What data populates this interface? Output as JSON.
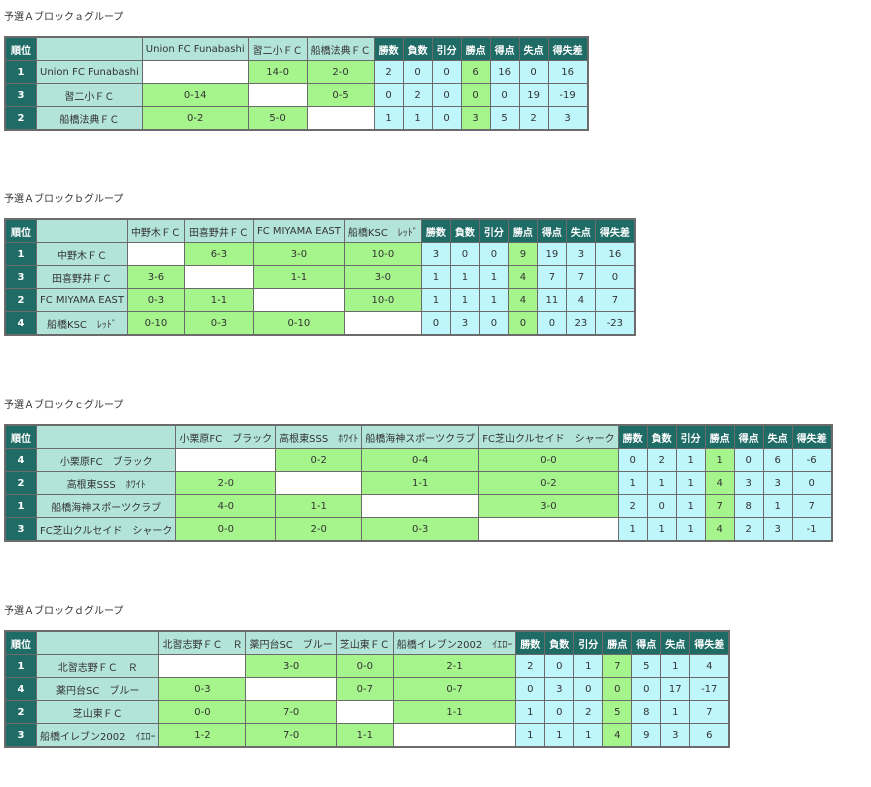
{
  "stat_headers": [
    "勝数",
    "負数",
    "引分",
    "勝点",
    "得点",
    "失点",
    "得失差"
  ],
  "rank_header": "順位",
  "groups": [
    {
      "title": "予選Ａブロックａグループ",
      "teams": [
        "Union FC Funabashi",
        "習二小ＦＣ",
        "船橋法典ＦＣ"
      ],
      "rows": [
        {
          "rank": "1",
          "team": "Union FC Funabashi",
          "results": [
            "",
            "14-0",
            "2-0"
          ],
          "stats": [
            "2",
            "0",
            "0",
            "6",
            "16",
            "0",
            "16"
          ]
        },
        {
          "rank": "3",
          "team": "習二小ＦＣ",
          "results": [
            "0-14",
            "",
            "0-5"
          ],
          "stats": [
            "0",
            "2",
            "0",
            "0",
            "0",
            "19",
            "-19"
          ]
        },
        {
          "rank": "2",
          "team": "船橋法典ＦＣ",
          "results": [
            "0-2",
            "5-0",
            ""
          ],
          "stats": [
            "1",
            "1",
            "0",
            "3",
            "5",
            "2",
            "3"
          ]
        }
      ]
    },
    {
      "title": "予選Ａブロックｂグループ",
      "teams": [
        "中野木ＦＣ",
        "田喜野井ＦＣ",
        "FC MIYAMA EAST",
        "船橋KSC　ﾚｯﾄﾞ"
      ],
      "rows": [
        {
          "rank": "1",
          "team": "中野木ＦＣ",
          "results": [
            "",
            "6-3",
            "3-0",
            "10-0"
          ],
          "stats": [
            "3",
            "0",
            "0",
            "9",
            "19",
            "3",
            "16"
          ]
        },
        {
          "rank": "3",
          "team": "田喜野井ＦＣ",
          "results": [
            "3-6",
            "",
            "1-1",
            "3-0"
          ],
          "stats": [
            "1",
            "1",
            "1",
            "4",
            "7",
            "7",
            "0"
          ]
        },
        {
          "rank": "2",
          "team": "FC MIYAMA EAST",
          "results": [
            "0-3",
            "1-1",
            "",
            "10-0"
          ],
          "stats": [
            "1",
            "1",
            "1",
            "4",
            "11",
            "4",
            "7"
          ]
        },
        {
          "rank": "4",
          "team": "船橋KSC　ﾚｯﾄﾞ",
          "results": [
            "0-10",
            "0-3",
            "0-10",
            ""
          ],
          "stats": [
            "0",
            "3",
            "0",
            "0",
            "0",
            "23",
            "-23"
          ]
        }
      ]
    },
    {
      "title": "予選Ａブロックｃグループ",
      "teams": [
        "小栗原FC　ブラック",
        "高根東SSS　ﾎﾜｲﾄ",
        "船橋海神スポーツクラブ",
        "FC芝山クルセイド　シャーク"
      ],
      "rows": [
        {
          "rank": "4",
          "team": "小栗原FC　ブラック",
          "results": [
            "",
            "0-2",
            "0-4",
            "0-0"
          ],
          "stats": [
            "0",
            "2",
            "1",
            "1",
            "0",
            "6",
            "-6"
          ]
        },
        {
          "rank": "2",
          "team": "高根東SSS　ﾎﾜｲﾄ",
          "results": [
            "2-0",
            "",
            "1-1",
            "0-2"
          ],
          "stats": [
            "1",
            "1",
            "1",
            "4",
            "3",
            "3",
            "0"
          ]
        },
        {
          "rank": "1",
          "team": "船橋海神スポーツクラブ",
          "results": [
            "4-0",
            "1-1",
            "",
            "3-0"
          ],
          "stats": [
            "2",
            "0",
            "1",
            "7",
            "8",
            "1",
            "7"
          ]
        },
        {
          "rank": "3",
          "team": "FC芝山クルセイド　シャーク",
          "results": [
            "0-0",
            "2-0",
            "0-3",
            ""
          ],
          "stats": [
            "1",
            "1",
            "1",
            "4",
            "2",
            "3",
            "-1"
          ]
        }
      ]
    },
    {
      "title": "予選Ａブロックｄグループ",
      "teams": [
        "北習志野ＦＣ　Ｒ",
        "薬円台SC　ブルー",
        "芝山東ＦＣ",
        "船橋イレブン2002　ｲｴﾛｰ"
      ],
      "rows": [
        {
          "rank": "1",
          "team": "北習志野ＦＣ　Ｒ",
          "results": [
            "",
            "3-0",
            "0-0",
            "2-1"
          ],
          "stats": [
            "2",
            "0",
            "1",
            "7",
            "5",
            "1",
            "4"
          ]
        },
        {
          "rank": "4",
          "team": "薬円台SC　ブルー",
          "results": [
            "0-3",
            "",
            "0-7",
            "0-7"
          ],
          "stats": [
            "0",
            "3",
            "0",
            "0",
            "0",
            "17",
            "-17"
          ]
        },
        {
          "rank": "2",
          "team": "芝山東ＦＣ",
          "results": [
            "0-0",
            "7-0",
            "",
            "1-1"
          ],
          "stats": [
            "1",
            "0",
            "2",
            "5",
            "8",
            "1",
            "7"
          ]
        },
        {
          "rank": "3",
          "team": "船橋イレブン2002　ｲｴﾛｰ",
          "results": [
            "1-2",
            "7-0",
            "1-1",
            ""
          ],
          "stats": [
            "1",
            "1",
            "1",
            "4",
            "9",
            "3",
            "6"
          ]
        }
      ]
    }
  ]
}
